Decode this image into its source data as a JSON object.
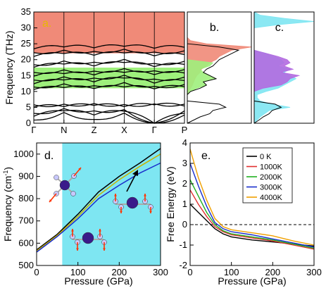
{
  "chart_data": [
    {
      "panel_label": "a.",
      "type": "line",
      "title": "",
      "ylabel": "Frequency (THz)",
      "ylim": [
        0,
        35
      ],
      "yticks": [
        0,
        5,
        10,
        15,
        20,
        25,
        30,
        35
      ],
      "xticks": [
        "Γ",
        "N",
        "Z",
        "X",
        "Γ",
        "P"
      ],
      "shaded_bands": [
        {
          "from": 22,
          "to": 35,
          "color": "#f08a78"
        },
        {
          "from": 11,
          "to": 17.5,
          "color": "#9ef07c"
        }
      ],
      "series": [
        {
          "values": [
            1.0,
            3.4,
            1.2,
            3.2,
            0.0,
            2.6
          ]
        },
        {
          "values": [
            2.2,
            3.9,
            2.6,
            3.8,
            0.0,
            3.1
          ]
        },
        {
          "values": [
            3.1,
            4.6,
            3.9,
            4.3,
            0.0,
            3.9
          ]
        },
        {
          "values": [
            5.1,
            5.2,
            5.6,
            5.2,
            5.8,
            5.4
          ]
        },
        {
          "values": [
            5.8,
            6.0,
            6.2,
            5.9,
            6.1,
            6.0
          ]
        },
        {
          "values": [
            10.6,
            11.2,
            10.9,
            11.4,
            10.8,
            11.5
          ]
        },
        {
          "values": [
            11.4,
            12.4,
            11.8,
            12.8,
            11.6,
            12.2
          ]
        },
        {
          "values": [
            12.4,
            13.6,
            13.0,
            14.2,
            12.6,
            13.4
          ]
        },
        {
          "values": [
            13.6,
            14.6,
            14.2,
            15.1,
            13.9,
            14.5
          ]
        },
        {
          "values": [
            14.8,
            15.6,
            15.2,
            16.0,
            15.3,
            15.8
          ]
        },
        {
          "values": [
            16.0,
            16.8,
            16.4,
            17.2,
            16.5,
            16.9
          ]
        },
        {
          "values": [
            17.6,
            18.6,
            18.0,
            19.1,
            17.8,
            18.5
          ]
        },
        {
          "values": [
            18.4,
            19.6,
            19.2,
            20.1,
            18.8,
            19.5
          ]
        },
        {
          "values": [
            21.0,
            21.9,
            21.4,
            22.1,
            21.2,
            21.6
          ]
        },
        {
          "values": [
            22.2,
            23.0,
            22.6,
            23.3,
            22.4,
            22.8
          ]
        },
        {
          "values": [
            23.4,
            24.0,
            23.7,
            24.2,
            23.6,
            23.9
          ]
        }
      ]
    },
    {
      "panel_label": "b.",
      "type": "area",
      "title": "",
      "ylim": [
        0,
        35
      ],
      "series": [
        {
          "color": "#f08a78",
          "y": [
            0,
            4,
            5,
            6,
            8,
            9,
            10,
            11,
            12,
            13,
            14,
            15,
            16,
            17,
            18,
            19,
            20,
            21,
            22,
            23,
            24,
            25,
            26,
            27,
            35
          ],
          "values": [
            0,
            0,
            0,
            0,
            0,
            0,
            0.02,
            0.05,
            0.08,
            0.1,
            0.12,
            0.15,
            0.2,
            0.22,
            0.3,
            0.35,
            0.45,
            0.5,
            0.6,
            0.7,
            1.0,
            0.3,
            0.05,
            0,
            0
          ]
        },
        {
          "color": "#9ef07c",
          "y": [
            0,
            9,
            10,
            11,
            12,
            13,
            14,
            15,
            16,
            17,
            18,
            19,
            20,
            35
          ],
          "values": [
            0,
            0,
            0.05,
            0.15,
            0.3,
            0.25,
            0.45,
            0.35,
            0.25,
            0.2,
            0.35,
            0.4,
            0,
            0
          ]
        },
        {
          "color": "#000000",
          "y": [
            0,
            1,
            2,
            3,
            4,
            5,
            6,
            7,
            9,
            10,
            11,
            12,
            13,
            14,
            15,
            16,
            17,
            18,
            19,
            20,
            21,
            22,
            23,
            24,
            25,
            35
          ],
          "values": [
            0,
            0.1,
            0.2,
            0.35,
            0.4,
            0.6,
            0.5,
            0,
            0,
            0.05,
            0.2,
            0.3,
            0.25,
            0.45,
            0.35,
            0.25,
            0.3,
            0.4,
            0.45,
            0.5,
            0.6,
            0.7,
            0.8,
            0.5,
            0,
            0
          ]
        }
      ]
    },
    {
      "panel_label": "c.",
      "type": "area",
      "title": "",
      "ylim": [
        0,
        35
      ],
      "series": [
        {
          "color": "#7ee6f2",
          "y": [
            0,
            2,
            4,
            5,
            6,
            7,
            8,
            9,
            10,
            11,
            12,
            13,
            14,
            15,
            16,
            17,
            18,
            19,
            20,
            21,
            22,
            23,
            30,
            31,
            32,
            33,
            34,
            35
          ],
          "values": [
            0,
            0.1,
            0.25,
            0.6,
            0.3,
            0.1,
            0.05,
            0.05,
            0.2,
            0.4,
            0.5,
            0.6,
            0.7,
            0.6,
            0.5,
            0.6,
            0.4,
            0.5,
            0.45,
            0.35,
            0.2,
            0,
            0,
            0.4,
            1.0,
            0.5,
            0.1,
            0
          ]
        },
        {
          "color": "#b36ae0",
          "y": [
            0,
            10,
            11,
            12,
            13,
            14,
            15,
            16,
            17,
            18,
            19,
            20,
            21,
            22,
            23,
            35
          ],
          "values": [
            0,
            0,
            0.15,
            0.45,
            0.55,
            0.6,
            0.75,
            0.45,
            0.65,
            0.5,
            0.6,
            0.55,
            0.4,
            0.2,
            0,
            0
          ]
        },
        {
          "color": "#000000",
          "y": [
            0,
            1,
            2,
            3,
            4,
            5,
            6,
            7,
            35
          ],
          "values": [
            0,
            0.08,
            0.15,
            0.25,
            0.3,
            0.45,
            0.35,
            0,
            0
          ]
        }
      ]
    },
    {
      "panel_label": "d.",
      "type": "line",
      "title": "",
      "xlabel": "Pressure (GPa)",
      "ylabel": "Frequency (cm",
      "ylabel_sup": "-1",
      "ylabel_end": ")",
      "xlim": [
        0,
        300
      ],
      "ylim": [
        500,
        1050
      ],
      "xticks": [
        0,
        100,
        200,
        300
      ],
      "yticks": [
        500,
        600,
        700,
        800,
        900,
        1000
      ],
      "shaded_region": {
        "x_from": 62,
        "x_to": 300,
        "color": "#7ee6f2"
      },
      "series": [
        {
          "color": "#000000",
          "x": [
            0,
            50,
            100,
            150,
            200,
            250,
            300
          ],
          "values": [
            570,
            640,
            730,
            830,
            900,
            960,
            1025
          ]
        },
        {
          "color": "#c8b400",
          "x": [
            0,
            50,
            100,
            150,
            200,
            250,
            300
          ],
          "values": [
            565,
            635,
            720,
            815,
            885,
            945,
            1000
          ]
        },
        {
          "color": "#1a2ecc",
          "x": [
            0,
            50,
            100,
            150,
            200,
            250,
            300
          ],
          "values": [
            560,
            630,
            710,
            800,
            860,
            915,
            960
          ]
        }
      ]
    },
    {
      "panel_label": "e.",
      "type": "line",
      "title": "",
      "xlabel": "Pressure (GPa)",
      "ylabel": "Free Energy (eV)",
      "xlim": [
        0,
        300
      ],
      "ylim": [
        -2,
        4
      ],
      "xticks": [
        0,
        100,
        200,
        300
      ],
      "yticks": [
        -2,
        -1,
        0,
        1,
        2,
        3,
        4
      ],
      "legend_position": "top-right",
      "legend": [
        "0 K",
        "1000K",
        "2000K",
        "3000K",
        "4000K"
      ],
      "reference_line": {
        "y": 0,
        "style": "dashed"
      },
      "series": [
        {
          "name": "0 K",
          "color": "#000000",
          "x": [
            0,
            20,
            40,
            60,
            80,
            100,
            150,
            200,
            250,
            300
          ],
          "values": [
            1.0,
            0.6,
            0.2,
            -0.2,
            -0.45,
            -0.6,
            -0.75,
            -0.85,
            -0.95,
            -1.05
          ]
        },
        {
          "name": "1000K",
          "color": "#e03030",
          "x": [
            0,
            20,
            40,
            60,
            80,
            100,
            150,
            200,
            250,
            300
          ],
          "values": [
            1.7,
            1.0,
            0.4,
            -0.1,
            -0.35,
            -0.5,
            -0.65,
            -0.8,
            -1.0,
            -1.2
          ]
        },
        {
          "name": "2000K",
          "color": "#22b022",
          "x": [
            0,
            20,
            40,
            60,
            80,
            100,
            150,
            200,
            250,
            300
          ],
          "values": [
            2.2,
            1.4,
            0.6,
            0.0,
            -0.3,
            -0.45,
            -0.6,
            -0.75,
            -0.95,
            -1.15
          ]
        },
        {
          "name": "3000K",
          "color": "#1a2ecc",
          "x": [
            0,
            20,
            40,
            60,
            80,
            100,
            150,
            200,
            250,
            300
          ],
          "values": [
            3.0,
            1.9,
            0.9,
            0.1,
            -0.2,
            -0.35,
            -0.5,
            -0.7,
            -0.9,
            -1.1
          ]
        },
        {
          "name": "4000K",
          "color": "#f0a000",
          "x": [
            0,
            20,
            40,
            60,
            80,
            100,
            150,
            200,
            250,
            300
          ],
          "values": [
            3.7,
            2.3,
            1.2,
            0.3,
            -0.1,
            -0.25,
            -0.4,
            -0.55,
            -0.8,
            -1.0
          ]
        }
      ]
    }
  ]
}
